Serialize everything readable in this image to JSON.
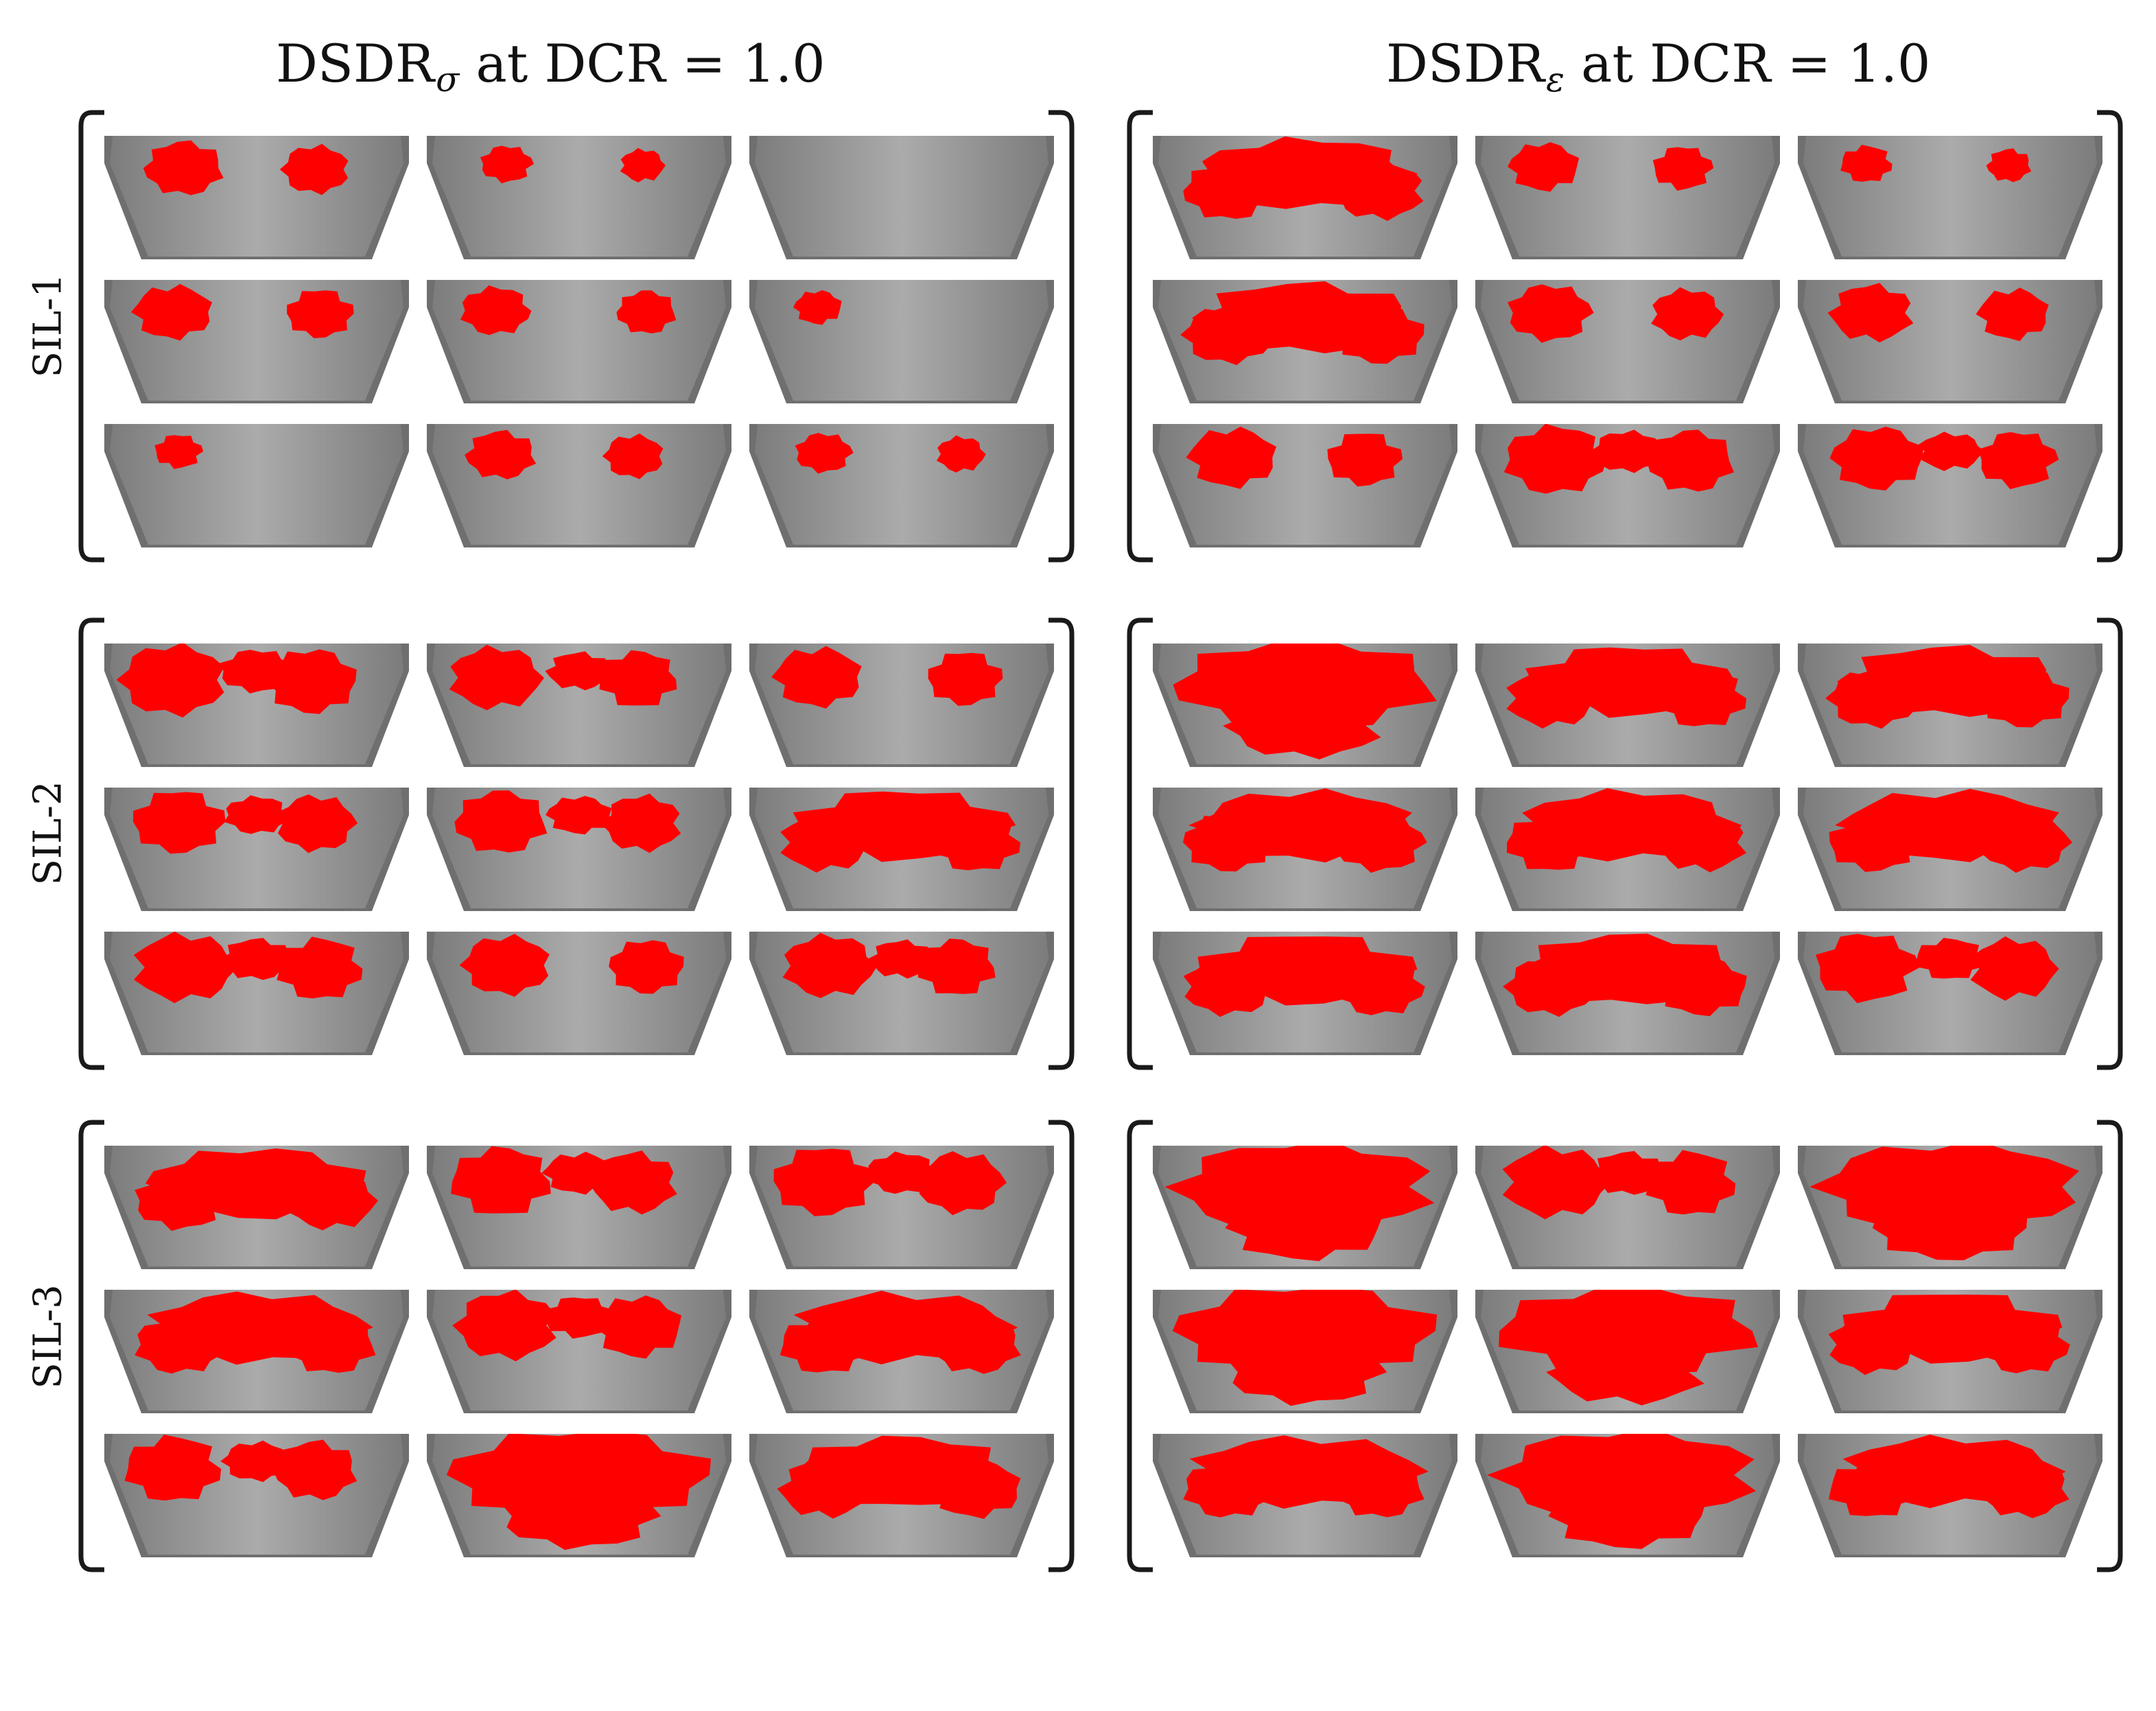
{
  "columns": [
    {
      "id": "sigma",
      "prefix": "DSDR",
      "subscript": "σ",
      "suffix": " at DCR = 1.0"
    },
    {
      "id": "epsilon",
      "prefix": "DSDR",
      "subscript": "ε",
      "suffix": " at DCR = 1.0"
    }
  ],
  "rows": [
    {
      "id": "sil1",
      "label": "SIL-1"
    },
    {
      "id": "sil2",
      "label": "SIL-2"
    },
    {
      "id": "sil3",
      "label": "SIL-3"
    }
  ],
  "colors": {
    "highlight": "#ff0000",
    "surface": "#a4a4a4",
    "edge": "#6f6f6f",
    "bracket": "#1a1a1a"
  },
  "damage_coverage": {
    "sigma": {
      "sil1": [
        [
          0.45,
          0.15,
          0.0
        ],
        [
          0.45,
          0.35,
          0.1
        ],
        [
          0.1,
          0.35,
          0.2
        ]
      ],
      "sil2": [
        [
          0.75,
          0.6,
          0.55
        ],
        [
          0.6,
          0.6,
          0.85
        ],
        [
          0.7,
          0.55,
          0.6
        ]
      ],
      "sil3": [
        [
          0.85,
          0.7,
          0.7
        ],
        [
          0.85,
          0.7,
          0.85
        ],
        [
          0.65,
          1.0,
          0.85
        ]
      ]
    },
    "epsilon": {
      "sil1": [
        [
          0.85,
          0.35,
          0.15
        ],
        [
          0.85,
          0.5,
          0.5
        ],
        [
          0.55,
          0.7,
          0.6
        ]
      ],
      "sil2": [
        [
          1.0,
          0.8,
          0.85
        ],
        [
          0.85,
          0.85,
          0.85
        ],
        [
          0.85,
          0.85,
          0.7
        ]
      ],
      "sil3": [
        [
          1.0,
          0.75,
          1.0
        ],
        [
          1.0,
          1.0,
          0.85
        ],
        [
          0.9,
          1.0,
          0.85
        ]
      ]
    }
  }
}
